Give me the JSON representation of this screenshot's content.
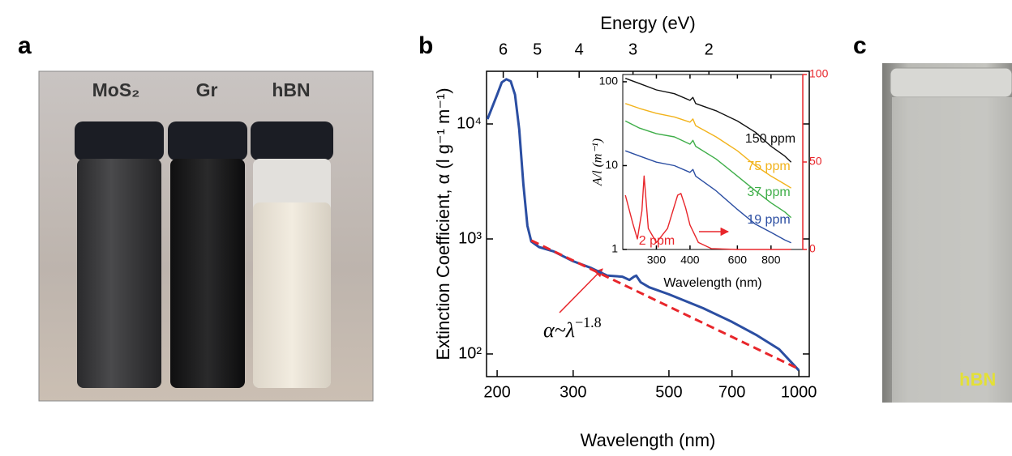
{
  "panel_labels": [
    "a",
    "b",
    "c"
  ],
  "photo_a": {
    "labels": [
      "MoS₂",
      "Gr",
      "hBN"
    ]
  },
  "photo_c": {
    "label": "hBN"
  },
  "chart_data": [
    {
      "type": "line",
      "xlabel": "Wavelength (nm)",
      "ylabel": "Extinction Coefficient, α (l g⁻¹ m⁻¹)",
      "x2label": "Energy (eV)",
      "xscale": "log",
      "yscale": "log",
      "x2scale": "log",
      "xlim": [
        189,
        1057
      ],
      "xticks": [
        200,
        300,
        500,
        700,
        1000
      ],
      "x2lim": [
        6.56,
        1.17
      ],
      "x2ticks": [
        6,
        5,
        4,
        3,
        2
      ],
      "ylim": [
        63.5,
        28700
      ],
      "yticks": [
        {
          "value": 100,
          "label": "10²"
        },
        {
          "value": 1000,
          "label": "10³"
        },
        {
          "value": 10000,
          "label": "10⁴"
        }
      ],
      "series": [
        {
          "color": "#2b4ea2",
          "x": [
            190,
            200,
            205,
            210,
            215,
            220,
            225,
            230,
            235,
            240,
            250,
            270,
            300,
            330,
            360,
            390,
            405,
            415,
            420,
            430,
            450,
            500,
            600,
            700,
            800,
            900,
            1000
          ],
          "values": [
            11000,
            18000,
            23000,
            24500,
            23500,
            18000,
            9000,
            3000,
            1300,
            950,
            850,
            780,
            640,
            560,
            480,
            470,
            440,
            470,
            480,
            420,
            380,
            330,
            250,
            190,
            145,
            110,
            72
          ]
        },
        {
          "color": "#e8262b",
          "dashed": true,
          "x": [
            240,
            1000
          ],
          "values": [
            970,
            74
          ]
        }
      ],
      "annotation": {
        "text": "α~λ",
        "exponent": "−1.8"
      }
    },
    {
      "type": "line",
      "xlabel": "Wavelength (nm)",
      "ylabel": "A/l (m⁻¹)",
      "xscale": "log",
      "yscale": "log",
      "xlim": [
        225,
        1050
      ],
      "xticks": [
        300,
        400,
        600,
        800
      ],
      "ylim": [
        1,
        122
      ],
      "yticks": [
        1,
        10,
        100
      ],
      "y2lim": [
        0,
        100
      ],
      "y2ticks": [
        0,
        50,
        100
      ],
      "y2color": "#e8262b",
      "series": [
        {
          "name": "150 ppm",
          "color": "#111111",
          "x": [
            230,
            260,
            300,
            350,
            400,
            410,
            420,
            500,
            600,
            700,
            800,
            900,
            950
          ],
          "values": [
            110,
            95,
            80,
            72,
            60,
            65,
            55,
            45,
            34,
            25,
            17,
            13,
            11
          ]
        },
        {
          "name": "75 ppm",
          "color": "#f2b31c",
          "x": [
            230,
            260,
            300,
            350,
            400,
            410,
            420,
            500,
            600,
            700,
            800,
            900,
            950
          ],
          "values": [
            55,
            48,
            42,
            38,
            33,
            36,
            30,
            22,
            15,
            10,
            7.5,
            6,
            5.4
          ]
        },
        {
          "name": "37 ppm",
          "color": "#3fae49",
          "x": [
            230,
            260,
            300,
            350,
            400,
            410,
            420,
            500,
            600,
            700,
            800,
            900,
            950
          ],
          "values": [
            34,
            28,
            24,
            22,
            18,
            20,
            17,
            12,
            7.5,
            5,
            3.6,
            2.8,
            2.4
          ]
        },
        {
          "name": "19 ppm",
          "color": "#2b4ea2",
          "x": [
            230,
            260,
            300,
            350,
            400,
            410,
            420,
            500,
            600,
            700,
            800,
            900,
            950
          ],
          "values": [
            15,
            13,
            11,
            10,
            8.3,
            9,
            7.5,
            5,
            3,
            2,
            1.6,
            1.3,
            1.2
          ]
        },
        {
          "name": "2 ppm",
          "color": "#e8262b",
          "axis": "y2",
          "x": [
            230,
            245,
            255,
            265,
            270,
            280,
            300,
            330,
            350,
            360,
            370,
            385,
            400,
            430,
            480,
            600,
            950
          ],
          "values": [
            31,
            15,
            6,
            22,
            42,
            12,
            4,
            12,
            25,
            31,
            32,
            24,
            14,
            4,
            0.5,
            0,
            0
          ]
        }
      ]
    }
  ]
}
